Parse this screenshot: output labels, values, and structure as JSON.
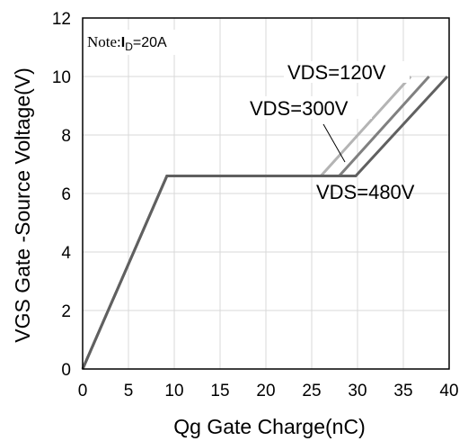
{
  "chart_data": {
    "type": "line",
    "xlabel": "Qg Gate Charge(nC)",
    "ylabel": "VGS Gate -Source Voltage(V)",
    "xlim": [
      0,
      40
    ],
    "ylim": [
      0,
      12
    ],
    "x_ticks": [
      "0",
      "5",
      "10",
      "15",
      "20",
      "25",
      "30",
      "35",
      "40"
    ],
    "y_ticks": [
      "0",
      "2",
      "4",
      "6",
      "8",
      "10",
      "12"
    ],
    "grid": true,
    "note": {
      "prefix": "Note:",
      "text": "I",
      "sub": "D",
      "suffix": "=20A"
    },
    "series": [
      {
        "name": "VDS=120V",
        "color": "#b4b4b4",
        "x": [
          0,
          9.2,
          26.0,
          35.8
        ],
        "y": [
          0,
          6.6,
          6.6,
          10.0
        ]
      },
      {
        "name": "VDS=300V",
        "color": "#808080",
        "x": [
          0,
          9.2,
          28.0,
          37.8
        ],
        "y": [
          0,
          6.6,
          6.6,
          10.0
        ]
      },
      {
        "name": "VDS=480V",
        "color": "#606060",
        "x": [
          0,
          9.2,
          29.8,
          39.8
        ],
        "y": [
          0,
          6.6,
          6.6,
          10.0
        ]
      }
    ]
  }
}
